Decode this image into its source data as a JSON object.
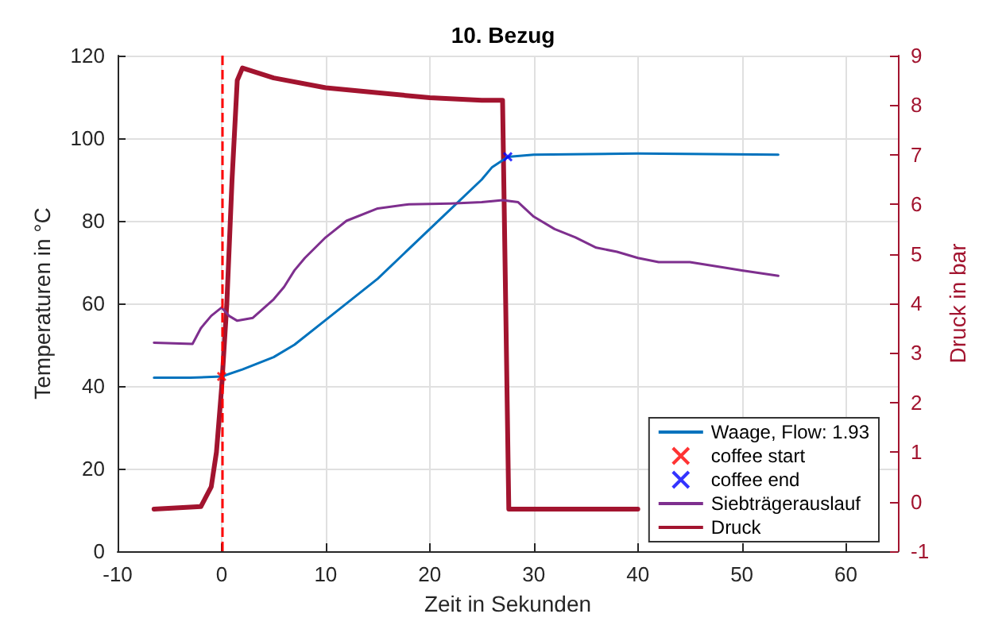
{
  "chart_data": {
    "type": "line",
    "title": "10. Bezug",
    "xlabel": "Zeit in Sekunden",
    "ylabel": "Temperaturen in °C",
    "y2label": "Druck in bar",
    "xlim": [
      -10,
      65
    ],
    "xticks": [
      -10,
      0,
      10,
      20,
      30,
      40,
      50,
      60
    ],
    "ylim": [
      0,
      120
    ],
    "yticks": [
      0,
      20,
      40,
      60,
      80,
      100,
      120
    ],
    "y2lim": [
      -1,
      9
    ],
    "y2ticks": [
      -1,
      0,
      1,
      2,
      3,
      4,
      5,
      6,
      7,
      8,
      9
    ],
    "grid": true,
    "legend": "bottom right",
    "marker": "none",
    "line_style": "solid",
    "ref_lines": [
      {
        "axis": "x",
        "value": 0,
        "color": "#ff0000",
        "line_style": "dashed"
      }
    ],
    "series": [
      {
        "name": "Waage, Flow: 1.93",
        "color": "#0072bd",
        "x": [
          -6.5,
          -3,
          0,
          2,
          5,
          7,
          10,
          15,
          20,
          25,
          26,
          27.5,
          30,
          40,
          53.5
        ],
        "values": [
          42,
          42,
          42.3,
          44,
          47,
          50,
          56,
          66,
          78,
          90,
          93,
          95.5,
          96,
          96.3,
          96
        ]
      },
      {
        "name": "coffee start",
        "type": "scatter",
        "marker": "cross",
        "color": "#ff0000",
        "x": [
          0
        ],
        "values": [
          42.3
        ]
      },
      {
        "name": "coffee end",
        "type": "scatter",
        "marker": "cross",
        "color": "#0000ff",
        "x": [
          27.5
        ],
        "values": [
          95.5
        ]
      },
      {
        "name": "Siebträgerauslauf",
        "color": "#7e2f8e",
        "x": [
          -6.5,
          -2.8,
          -2,
          -1,
          0,
          0.7,
          1.5,
          3,
          5,
          6,
          7,
          8,
          10,
          12,
          15,
          18,
          22,
          25,
          27,
          28.5,
          30,
          32,
          34,
          36,
          38,
          40,
          42,
          45,
          48,
          50,
          53.5
        ],
        "values": [
          50.5,
          50.2,
          54,
          57,
          59,
          57,
          55.8,
          56.5,
          61,
          64,
          68,
          71,
          76,
          80,
          83,
          84,
          84.2,
          84.5,
          85,
          84.5,
          81,
          78,
          76,
          73.5,
          72.5,
          71,
          70,
          70,
          68.8,
          68,
          66.7
        ]
      },
      {
        "name": "Druck",
        "color": "#a2142f",
        "axis": "y2",
        "x": [
          -6.5,
          -2,
          -1,
          -0.5,
          0,
          0.5,
          1,
          1.5,
          2,
          5,
          10,
          15,
          20,
          25,
          27,
          27.3,
          27.6,
          35,
          40
        ],
        "values": [
          -0.15,
          -0.1,
          0.3,
          1,
          2.3,
          4,
          6.5,
          8.5,
          8.75,
          8.55,
          8.35,
          8.25,
          8.15,
          8.1,
          8.1,
          4,
          -0.15,
          -0.15,
          -0.15
        ]
      }
    ]
  }
}
